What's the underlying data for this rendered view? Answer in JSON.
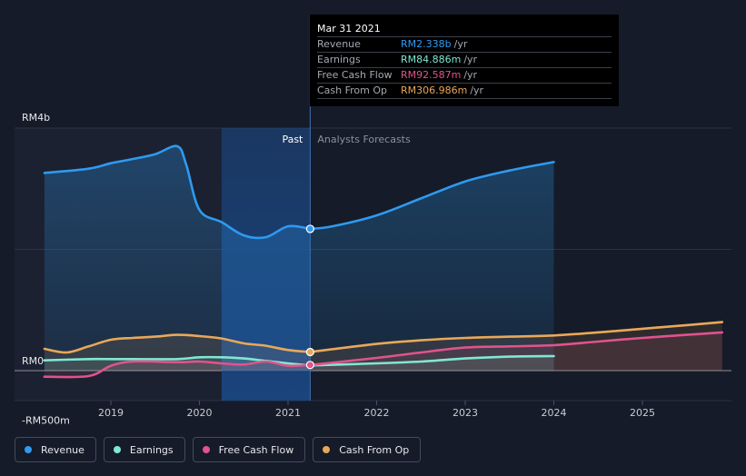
{
  "tooltip": {
    "date": "Mar 31 2021",
    "rows": [
      {
        "label": "Revenue",
        "value": "RM2.338b",
        "unit": "/yr",
        "color": "#2e9af0"
      },
      {
        "label": "Earnings",
        "value": "RM84.886m",
        "unit": "/yr",
        "color": "#7fe8d2"
      },
      {
        "label": "Free Cash Flow",
        "value": "RM92.587m",
        "unit": "/yr",
        "color": "#e0538d"
      },
      {
        "label": "Cash From Op",
        "value": "RM306.986m",
        "unit": "/yr",
        "color": "#e8a85a"
      }
    ]
  },
  "legend": [
    {
      "label": "Revenue",
      "color": "#2e9af0"
    },
    {
      "label": "Earnings",
      "color": "#7fe8d2"
    },
    {
      "label": "Free Cash Flow",
      "color": "#e0538d"
    },
    {
      "label": "Cash From Op",
      "color": "#e8a85a"
    }
  ],
  "chart_data": {
    "type": "line",
    "y_tick_labels": [
      "RM4b",
      "RM0",
      "-RM500m"
    ],
    "x_tick_labels": [
      "2019",
      "2020",
      "2021",
      "2022",
      "2023",
      "2024",
      "2025"
    ],
    "region_labels": {
      "past": "Past",
      "forecast": "Analysts Forecasts"
    },
    "ylim": [
      -500,
      4000
    ],
    "y_unit": "RM millions",
    "divider_date": 2021.25,
    "highlight_range": [
      2020.25,
      2021.25
    ],
    "grid": true,
    "legend_position": "bottom",
    "series": [
      {
        "name": "Revenue",
        "color": "#2e9af0",
        "past": [
          [
            2018.25,
            3260
          ],
          [
            2018.75,
            3330
          ],
          [
            2019.0,
            3420
          ],
          [
            2019.25,
            3490
          ],
          [
            2019.5,
            3570
          ],
          [
            2019.75,
            3700
          ],
          [
            2019.85,
            3400
          ],
          [
            2020.0,
            2650
          ],
          [
            2020.25,
            2450
          ],
          [
            2020.5,
            2230
          ],
          [
            2020.75,
            2200
          ],
          [
            2021.0,
            2380
          ],
          [
            2021.25,
            2338
          ]
        ],
        "forecast": [
          [
            2021.25,
            2338
          ],
          [
            2021.5,
            2380
          ],
          [
            2022.0,
            2560
          ],
          [
            2022.5,
            2840
          ],
          [
            2023.0,
            3120
          ],
          [
            2023.5,
            3300
          ],
          [
            2024.0,
            3440
          ]
        ],
        "marker": [
          2021.25,
          2338
        ]
      },
      {
        "name": "Earnings",
        "color": "#7fe8d2",
        "past": [
          [
            2018.25,
            170
          ],
          [
            2018.75,
            190
          ],
          [
            2019.0,
            190
          ],
          [
            2019.25,
            190
          ],
          [
            2019.75,
            190
          ],
          [
            2020.0,
            220
          ],
          [
            2020.25,
            220
          ],
          [
            2020.5,
            200
          ],
          [
            2020.75,
            160
          ],
          [
            2021.0,
            120
          ],
          [
            2021.25,
            85
          ]
        ],
        "forecast": [
          [
            2021.25,
            85
          ],
          [
            2022.0,
            120
          ],
          [
            2022.5,
            150
          ],
          [
            2023.0,
            200
          ],
          [
            2023.5,
            230
          ],
          [
            2024.0,
            240
          ]
        ],
        "marker": null
      },
      {
        "name": "Free Cash Flow",
        "color": "#e0538d",
        "past": [
          [
            2018.25,
            -100
          ],
          [
            2018.75,
            -90
          ],
          [
            2019.0,
            80
          ],
          [
            2019.25,
            150
          ],
          [
            2019.75,
            140
          ],
          [
            2020.0,
            150
          ],
          [
            2020.25,
            120
          ],
          [
            2020.5,
            100
          ],
          [
            2020.75,
            150
          ],
          [
            2021.0,
            80
          ],
          [
            2021.25,
            93
          ]
        ],
        "forecast": [
          [
            2021.25,
            93
          ],
          [
            2022.0,
            210
          ],
          [
            2022.5,
            300
          ],
          [
            2023.0,
            380
          ],
          [
            2023.5,
            400
          ],
          [
            2024.0,
            420
          ],
          [
            2024.5,
            480
          ],
          [
            2025.0,
            540
          ],
          [
            2025.5,
            590
          ],
          [
            2025.9,
            630
          ]
        ],
        "marker": [
          2021.25,
          93
        ]
      },
      {
        "name": "Cash From Op",
        "color": "#e8a85a",
        "past": [
          [
            2018.25,
            360
          ],
          [
            2018.5,
            300
          ],
          [
            2018.75,
            400
          ],
          [
            2019.0,
            510
          ],
          [
            2019.25,
            540
          ],
          [
            2019.5,
            560
          ],
          [
            2019.75,
            590
          ],
          [
            2020.0,
            570
          ],
          [
            2020.25,
            530
          ],
          [
            2020.5,
            450
          ],
          [
            2020.75,
            410
          ],
          [
            2021.0,
            340
          ],
          [
            2021.25,
            307
          ]
        ],
        "forecast": [
          [
            2021.25,
            307
          ],
          [
            2022.0,
            440
          ],
          [
            2022.5,
            500
          ],
          [
            2023.0,
            540
          ],
          [
            2023.5,
            560
          ],
          [
            2024.0,
            580
          ],
          [
            2024.5,
            630
          ],
          [
            2025.0,
            690
          ],
          [
            2025.5,
            750
          ],
          [
            2025.9,
            800
          ]
        ],
        "marker": [
          2021.25,
          307
        ]
      }
    ]
  }
}
